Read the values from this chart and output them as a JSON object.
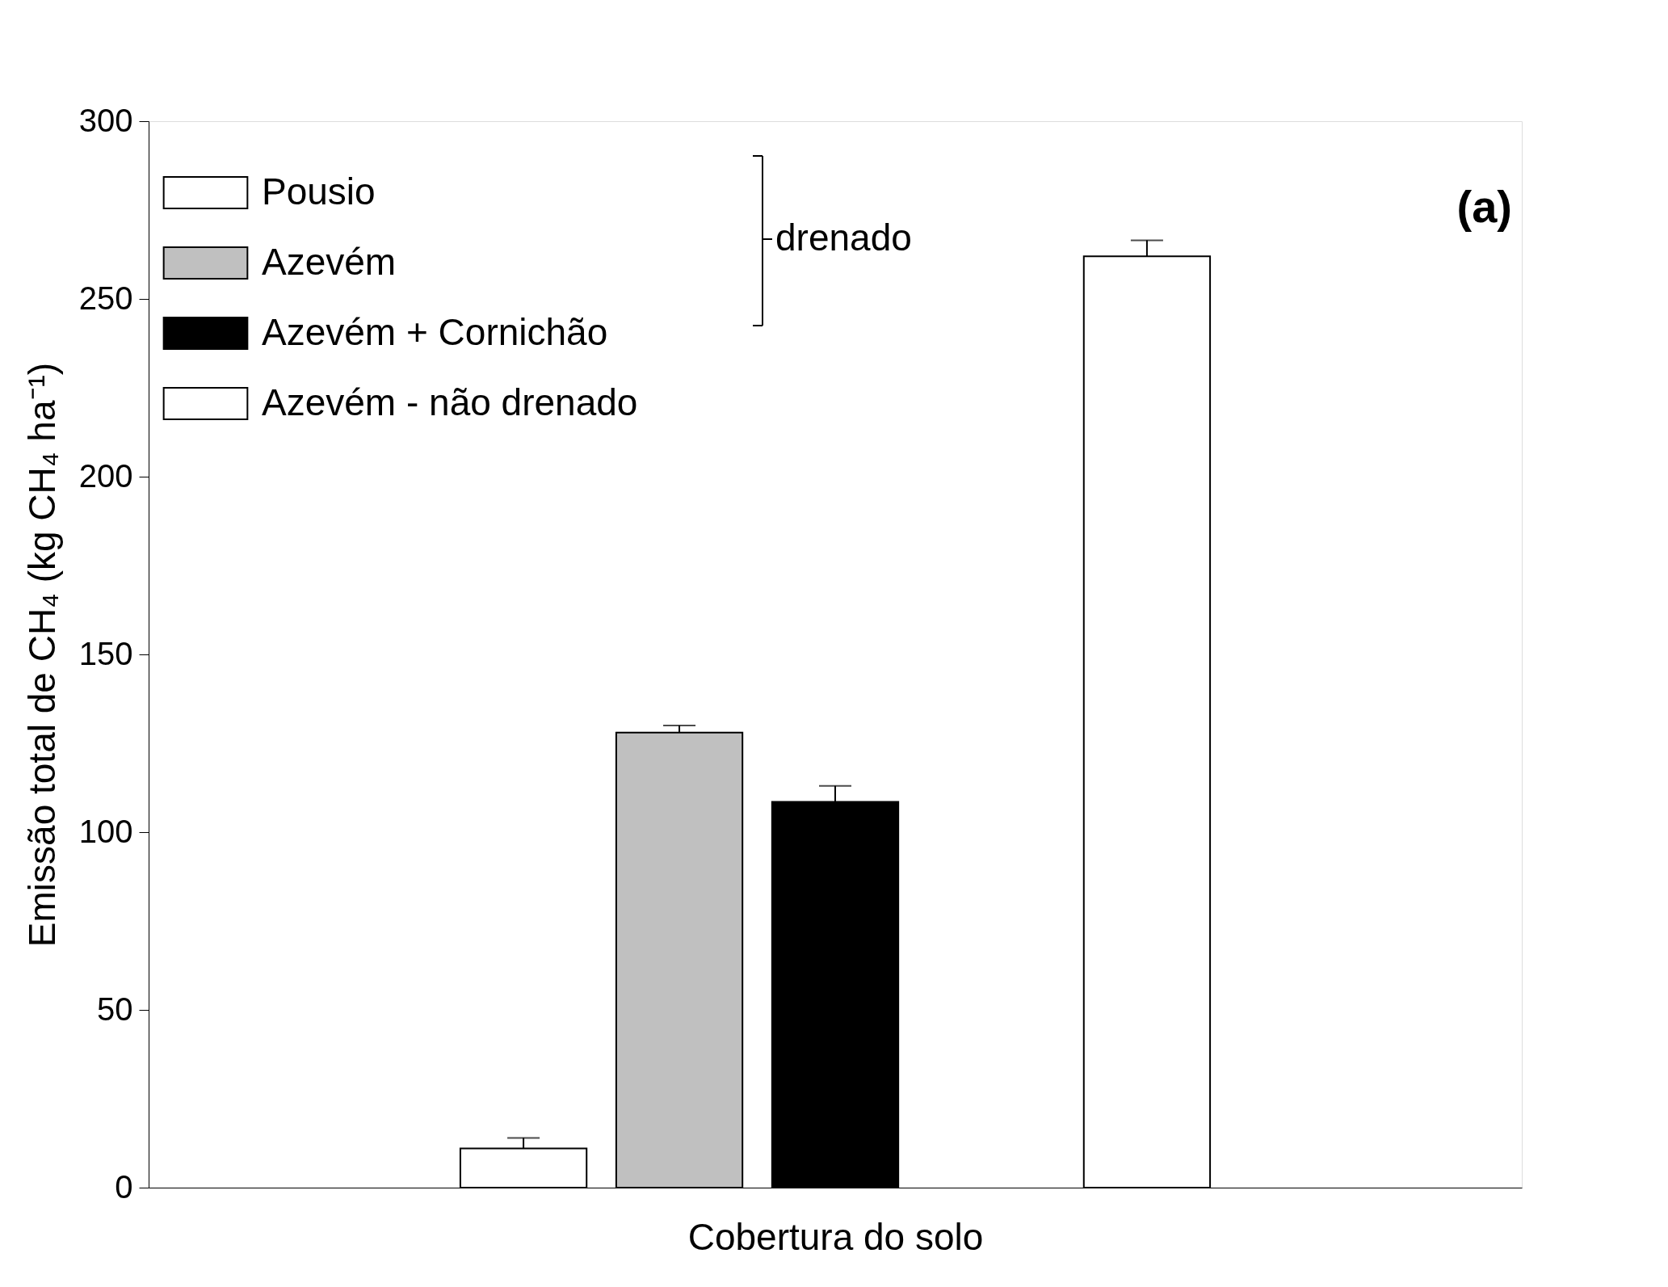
{
  "chart_data": {
    "type": "bar",
    "categories": [
      null,
      null,
      null,
      null,
      null,
      null,
      null,
      null,
      null
    ],
    "xlabel": "Cobertura do solo",
    "ylabel": "Emissão total de CH₄ (kg CH₄ ha⁻¹)",
    "ylim": [
      0,
      300
    ],
    "yticks": [
      0,
      50,
      100,
      150,
      200,
      250,
      300
    ],
    "grid": false,
    "legend": "top left",
    "series": [
      {
        "name": "Pousio",
        "color": "#ffffff",
        "values": [
          null,
          null,
          11,
          null,
          null,
          null,
          null,
          null,
          null
        ],
        "errors": [
          null,
          null,
          3,
          null,
          null,
          null,
          null,
          null,
          null
        ]
      },
      {
        "name": "Azevém",
        "color": "#c0c0c0",
        "values": [
          null,
          null,
          null,
          128,
          null,
          null,
          null,
          null,
          null
        ],
        "errors": [
          null,
          null,
          null,
          2,
          null,
          null,
          null,
          null,
          null
        ]
      },
      {
        "name": "Azevém + Cornichão",
        "color": "#000000",
        "values": [
          null,
          null,
          null,
          null,
          108.5,
          null,
          null,
          null,
          null
        ],
        "errors": [
          null,
          null,
          null,
          null,
          4.5,
          null,
          null,
          null,
          null
        ]
      },
      {
        "name": "Azevém - não drenado",
        "color": "#ffffff",
        "values": [
          null,
          null,
          null,
          null,
          null,
          null,
          262,
          null,
          null
        ],
        "errors": [
          null,
          null,
          null,
          null,
          null,
          null,
          4.5,
          null,
          null
        ]
      }
    ],
    "annotations": [
      "drenado",
      "(a)"
    ]
  }
}
